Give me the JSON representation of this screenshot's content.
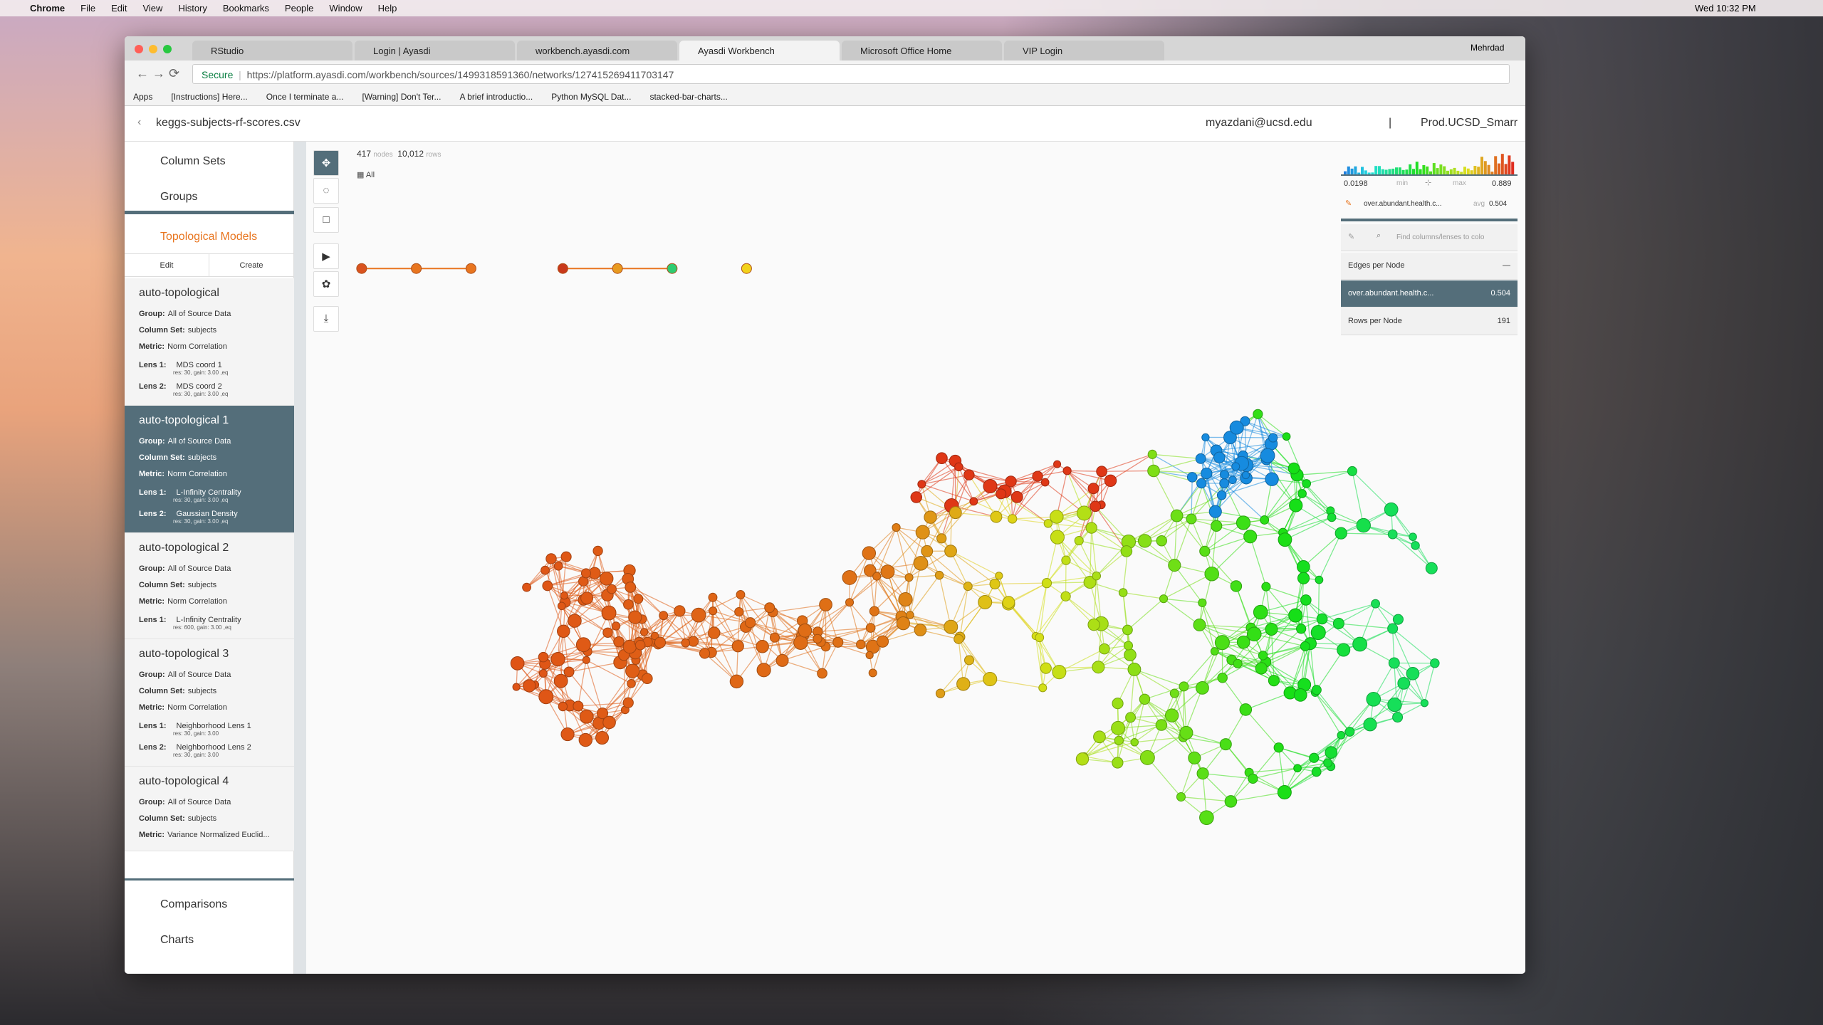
{
  "menu_bar": {
    "app": "Chrome",
    "menus": [
      "File",
      "Edit",
      "View",
      "History",
      "Bookmarks",
      "People",
      "Window",
      "Help"
    ],
    "clock": "Wed 10:32 PM"
  },
  "browser": {
    "tabs": [
      "RStudio",
      "Login | Ayasdi",
      "workbench.ayasdi.com",
      "Ayasdi Workbench",
      "Microsoft Office Home",
      "VIP Login"
    ],
    "active_tab": 3,
    "profile": "Mehrdad",
    "security": "Secure",
    "url": "https://platform.ayasdi.com/workbench/sources/1499318591360/networks/127415269411703147",
    "bookmarks": [
      "Apps",
      "[Instructions] Here...",
      "Once I terminate a...",
      "[Warning] Don't Ter...",
      "A brief introductio...",
      "Python MySQL Dat...",
      "stacked-bar-charts..."
    ]
  },
  "header": {
    "file": "keggs-subjects-rf-scores.csv",
    "user": "myazdani@ucsd.edu",
    "separator": "|",
    "org": "Prod.UCSD_Smarr"
  },
  "sidebar": {
    "nav": [
      "Column Sets",
      "Groups"
    ],
    "section": "Topological Models",
    "actions": [
      "Edit",
      "Create"
    ],
    "active_model": 1,
    "models": [
      {
        "title": "auto-topological",
        "fields": [
          {
            "label": "Group:",
            "value": "All of Source Data"
          },
          {
            "label": "Column Set:",
            "value": "subjects"
          },
          {
            "label": "Metric:",
            "value": "Norm Correlation"
          },
          {
            "label": "Lens 1:",
            "value": "MDS coord 1",
            "sub": "res: 30, gain: 3.00 ,eq"
          },
          {
            "label": "Lens 2:",
            "value": "MDS coord 2",
            "sub": "res: 30, gain: 3.00 ,eq"
          }
        ]
      },
      {
        "title": "auto-topological 1",
        "fields": [
          {
            "label": "Group:",
            "value": "All of Source Data"
          },
          {
            "label": "Column Set:",
            "value": "subjects"
          },
          {
            "label": "Metric:",
            "value": "Norm Correlation"
          },
          {
            "label": "Lens 1:",
            "value": "L-Infinity Centrality",
            "sub": "res: 30, gain: 3.00 ,eq"
          },
          {
            "label": "Lens 2:",
            "value": "Gaussian Density",
            "sub": "res: 30, gain: 3.00 ,eq"
          }
        ]
      },
      {
        "title": "auto-topological 2",
        "fields": [
          {
            "label": "Group:",
            "value": "All of Source Data"
          },
          {
            "label": "Column Set:",
            "value": "subjects"
          },
          {
            "label": "Metric:",
            "value": "Norm Correlation"
          },
          {
            "label": "Lens 1:",
            "value": "L-Infinity Centrality",
            "sub": "res: 600, gain: 3.00 ,eq"
          }
        ]
      },
      {
        "title": "auto-topological 3",
        "fields": [
          {
            "label": "Group:",
            "value": "All of Source Data"
          },
          {
            "label": "Column Set:",
            "value": "subjects"
          },
          {
            "label": "Metric:",
            "value": "Norm Correlation"
          },
          {
            "label": "Lens 1:",
            "value": "Neighborhood Lens 1",
            "sub": "res: 30, gain: 3.00"
          },
          {
            "label": "Lens 2:",
            "value": "Neighborhood Lens 2",
            "sub": "res: 30, gain: 3.00"
          }
        ]
      },
      {
        "title": "auto-topological 4",
        "fields": [
          {
            "label": "Group:",
            "value": "All of Source Data"
          },
          {
            "label": "Column Set:",
            "value": "subjects"
          },
          {
            "label": "Metric:",
            "value": "Variance Normalized Euclid..."
          }
        ]
      }
    ],
    "footer_nav": [
      "Comparisons",
      "Charts"
    ]
  },
  "network": {
    "nodes": "417",
    "nodes_label": "nodes",
    "rows": "10,012",
    "rows_label": "rows",
    "filter": "All"
  },
  "color_panel": {
    "min_value": "0.0198",
    "min_label": "min",
    "max_label": "max",
    "max_value": "0.889",
    "column": "over.abundant.health.c...",
    "avg_label": "avg",
    "avg_value": "0.504",
    "search_placeholder": "Find columns/lenses to colo",
    "items": [
      {
        "name": "Edges per Node",
        "value": "—"
      },
      {
        "name": "over.abundant.health.c...",
        "value": "0.504"
      },
      {
        "name": "Rows per Node",
        "value": "191"
      }
    ],
    "selected_item": 1
  }
}
